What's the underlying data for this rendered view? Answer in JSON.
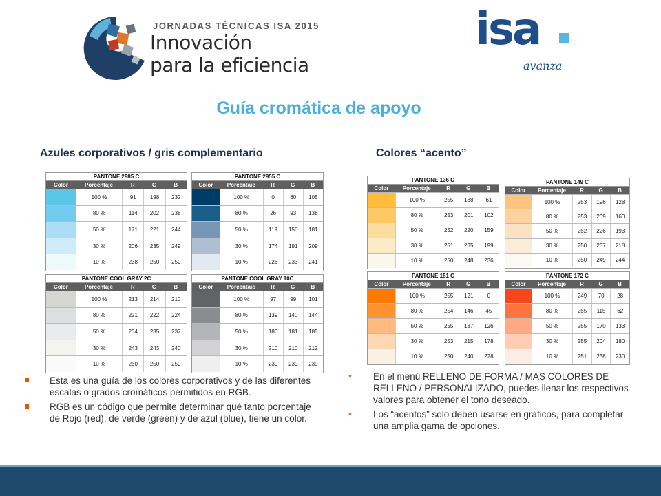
{
  "header": {
    "event_pre": "JORNADAS TÉCNICAS ISA 2015",
    "event_line1": "Innovación",
    "event_line2": "para la eficiencia",
    "brand": "isa",
    "brand_tagline": "avanza",
    "colors": {
      "brand_blue": "#1d4e8a",
      "brand_light": "#58b5e0"
    }
  },
  "title": "Guía cromática de apoyo",
  "left_heading": "Azules corporativos / gris complementario",
  "right_heading": "Colores “acento”",
  "columns": {
    "color": "Color",
    "pct": "Porcentaje",
    "r": "R",
    "g": "G",
    "b": "B"
  },
  "tables": [
    {
      "name": "PANTONE 2985 C",
      "rows": [
        {
          "pct": "100 %",
          "r": 91,
          "g": 198,
          "b": 232
        },
        {
          "pct": "80 %",
          "r": 114,
          "g": 202,
          "b": 238
        },
        {
          "pct": "50 %",
          "r": 171,
          "g": 221,
          "b": 244
        },
        {
          "pct": "30 %",
          "r": 206,
          "g": 235,
          "b": 249
        },
        {
          "pct": "10 %",
          "r": 238,
          "g": 250,
          "b": 250
        }
      ]
    },
    {
      "name": "PANTONE 2955 C",
      "rows": [
        {
          "pct": "100 %",
          "r": 0,
          "g": 60,
          "b": 105
        },
        {
          "pct": "80 %",
          "r": 26,
          "g": 93,
          "b": 138
        },
        {
          "pct": "50 %",
          "r": 119,
          "g": 150,
          "b": 181
        },
        {
          "pct": "30 %",
          "r": 174,
          "g": 191,
          "b": 209
        },
        {
          "pct": "10 %",
          "r": 226,
          "g": 233,
          "b": 241
        }
      ]
    },
    {
      "name": "PANTONE COOL GRAY 2C",
      "rows": [
        {
          "pct": "100 %",
          "r": 213,
          "g": 214,
          "b": 210
        },
        {
          "pct": "80 %",
          "r": 221,
          "g": 222,
          "b": 224
        },
        {
          "pct": "50 %",
          "r": 234,
          "g": 235,
          "b": 237
        },
        {
          "pct": "30 %",
          "r": 243,
          "g": 243,
          "b": 240
        },
        {
          "pct": "10 %",
          "r": 250,
          "g": 250,
          "b": 250
        }
      ]
    },
    {
      "name": "PANTONE COOL GRAY 10C",
      "rows": [
        {
          "pct": "100 %",
          "r": 97,
          "g": 99,
          "b": 101
        },
        {
          "pct": "80 %",
          "r": 139,
          "g": 140,
          "b": 144
        },
        {
          "pct": "50 %",
          "r": 180,
          "g": 181,
          "b": 185
        },
        {
          "pct": "30 %",
          "r": 210,
          "g": 210,
          "b": 212
        },
        {
          "pct": "10 %",
          "r": 239,
          "g": 239,
          "b": 239
        }
      ]
    },
    {
      "name": "PANTONE 136 C",
      "rows": [
        {
          "pct": "100 %",
          "r": 255,
          "g": 188,
          "b": 61
        },
        {
          "pct": "80 %",
          "r": 253,
          "g": 201,
          "b": 102
        },
        {
          "pct": "50 %",
          "r": 252,
          "g": 220,
          "b": 159
        },
        {
          "pct": "30 %",
          "r": 251,
          "g": 235,
          "b": 199
        },
        {
          "pct": "10 %",
          "r": 250,
          "g": 248,
          "b": 236
        }
      ]
    },
    {
      "name": "PANTONE 149 C",
      "rows": [
        {
          "pct": "100 %",
          "r": 253,
          "g": 196,
          "b": 128
        },
        {
          "pct": "80 %",
          "r": 253,
          "g": 209,
          "b": 160
        },
        {
          "pct": "50 %",
          "r": 252,
          "g": 226,
          "b": 193
        },
        {
          "pct": "30 %",
          "r": 250,
          "g": 237,
          "b": 218
        },
        {
          "pct": "10 %",
          "r": 250,
          "g": 249,
          "b": 244
        }
      ]
    },
    {
      "name": "PANTONE 151 C",
      "rows": [
        {
          "pct": "100 %",
          "r": 255,
          "g": 121,
          "b": 0
        },
        {
          "pct": "80 %",
          "r": 254,
          "g": 146,
          "b": 45
        },
        {
          "pct": "50 %",
          "r": 255,
          "g": 187,
          "b": 126
        },
        {
          "pct": "30 %",
          "r": 253,
          "g": 215,
          "b": 178
        },
        {
          "pct": "10 %",
          "r": 250,
          "g": 240,
          "b": 228
        }
      ]
    },
    {
      "name": "PANTONE 172 C",
      "rows": [
        {
          "pct": "100 %",
          "r": 249,
          "g": 70,
          "b": 28
        },
        {
          "pct": "80 %",
          "r": 255,
          "g": 115,
          "b": 62
        },
        {
          "pct": "50 %",
          "r": 255,
          "g": 170,
          "b": 133
        },
        {
          "pct": "30 %",
          "r": 255,
          "g": 204,
          "b": 180
        },
        {
          "pct": "10 %",
          "r": 251,
          "g": 238,
          "b": 230
        }
      ]
    }
  ],
  "left_bullets": [
    "Esta es una guía de los colores corporativos y de las diferentes escalas o grados cromáticos permitidos en RGB.",
    "RGB es un código que permite determinar qué tanto porcentaje de Rojo (red), de verde (green) y de azul (blue), tiene un color."
  ],
  "right_bullets": [
    "En el menú RELLENO DE FORMA / MAS COLORES DE RELLENO / PERSONALIZADO, puedes llenar los respectivos valores para obtener el tono deseado.",
    "Los “acentos” solo deben usarse en gráficos, para completar una amplia gama de opciones."
  ]
}
